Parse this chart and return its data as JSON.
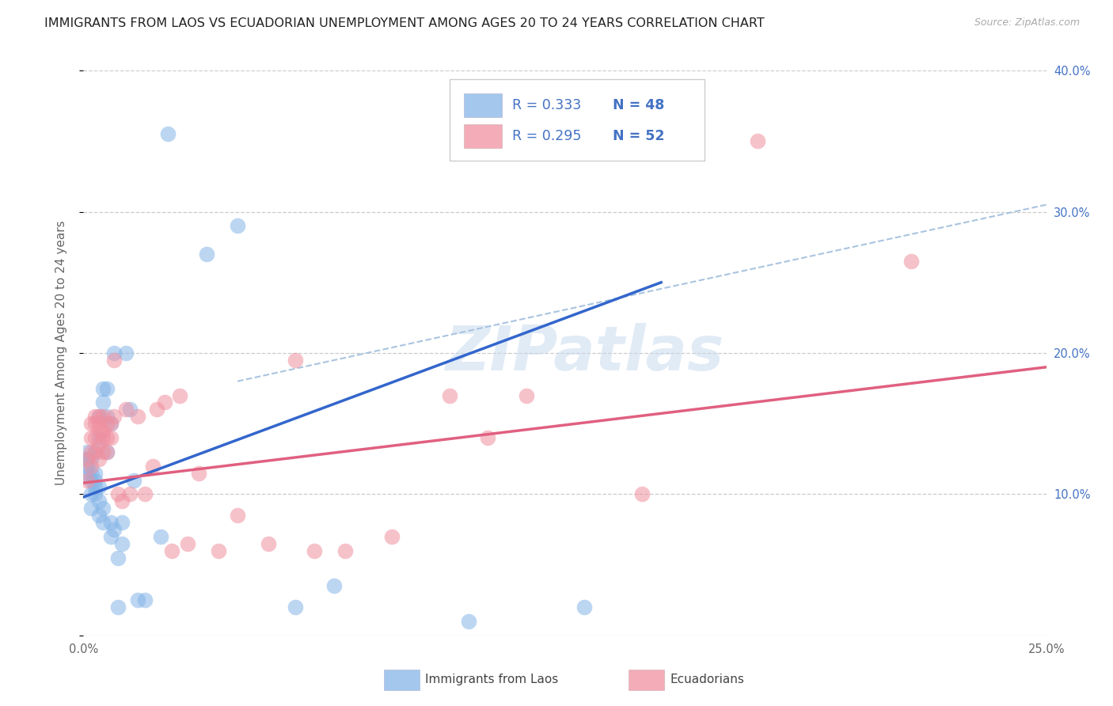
{
  "title": "IMMIGRANTS FROM LAOS VS ECUADORIAN UNEMPLOYMENT AMONG AGES 20 TO 24 YEARS CORRELATION CHART",
  "source": "Source: ZipAtlas.com",
  "ylabel": "Unemployment Among Ages 20 to 24 years",
  "xlim": [
    0.0,
    0.25
  ],
  "ylim": [
    0.0,
    0.4
  ],
  "xtick_vals": [
    0.0,
    0.05,
    0.1,
    0.15,
    0.2,
    0.25
  ],
  "xtick_labels": [
    "0.0%",
    "",
    "",
    "",
    "",
    "25.0%"
  ],
  "ytick_vals": [
    0.0,
    0.1,
    0.2,
    0.3,
    0.4
  ],
  "ytick_labels_right": [
    "",
    "10.0%",
    "20.0%",
    "30.0%",
    "40.0%"
  ],
  "legend_text_color": "#4472c4",
  "legend_blue_r": "R = 0.333",
  "legend_blue_n": "N = 48",
  "legend_pink_r": "R = 0.295",
  "legend_pink_n": "N = 52",
  "legend_label_blue": "Immigrants from Laos",
  "legend_label_pink": "Ecuadorians",
  "blue_scatter_color": "#85b5e8",
  "pink_scatter_color": "#f090a0",
  "trend_blue_color": "#3366cc",
  "trend_pink_color": "#e06080",
  "dashed_color": "#aac4e0",
  "blue_x": [
    0.001,
    0.001,
    0.001,
    0.001,
    0.002,
    0.002,
    0.002,
    0.002,
    0.002,
    0.003,
    0.003,
    0.003,
    0.003,
    0.003,
    0.004,
    0.004,
    0.004,
    0.004,
    0.004,
    0.005,
    0.005,
    0.005,
    0.005,
    0.006,
    0.006,
    0.006,
    0.007,
    0.007,
    0.007,
    0.008,
    0.008,
    0.009,
    0.009,
    0.01,
    0.01,
    0.011,
    0.012,
    0.013,
    0.014,
    0.016,
    0.02,
    0.022,
    0.032,
    0.04,
    0.055,
    0.065,
    0.1,
    0.13
  ],
  "blue_y": [
    0.115,
    0.12,
    0.125,
    0.13,
    0.09,
    0.1,
    0.11,
    0.115,
    0.125,
    0.1,
    0.105,
    0.11,
    0.115,
    0.13,
    0.085,
    0.095,
    0.105,
    0.14,
    0.155,
    0.08,
    0.09,
    0.165,
    0.175,
    0.13,
    0.155,
    0.175,
    0.07,
    0.08,
    0.15,
    0.075,
    0.2,
    0.02,
    0.055,
    0.065,
    0.08,
    0.2,
    0.16,
    0.11,
    0.025,
    0.025,
    0.07,
    0.355,
    0.27,
    0.29,
    0.02,
    0.035,
    0.01,
    0.02
  ],
  "pink_x": [
    0.001,
    0.001,
    0.002,
    0.002,
    0.002,
    0.002,
    0.003,
    0.003,
    0.003,
    0.003,
    0.004,
    0.004,
    0.004,
    0.004,
    0.004,
    0.005,
    0.005,
    0.005,
    0.005,
    0.006,
    0.006,
    0.006,
    0.007,
    0.007,
    0.008,
    0.008,
    0.009,
    0.01,
    0.011,
    0.012,
    0.014,
    0.016,
    0.018,
    0.019,
    0.021,
    0.023,
    0.025,
    0.027,
    0.03,
    0.035,
    0.04,
    0.048,
    0.055,
    0.06,
    0.068,
    0.08,
    0.095,
    0.105,
    0.115,
    0.145,
    0.175,
    0.215
  ],
  "pink_y": [
    0.11,
    0.125,
    0.12,
    0.13,
    0.14,
    0.15,
    0.13,
    0.14,
    0.15,
    0.155,
    0.125,
    0.135,
    0.145,
    0.15,
    0.155,
    0.13,
    0.14,
    0.145,
    0.155,
    0.13,
    0.14,
    0.15,
    0.14,
    0.15,
    0.155,
    0.195,
    0.1,
    0.095,
    0.16,
    0.1,
    0.155,
    0.1,
    0.12,
    0.16,
    0.165,
    0.06,
    0.17,
    0.065,
    0.115,
    0.06,
    0.085,
    0.065,
    0.195,
    0.06,
    0.06,
    0.07,
    0.17,
    0.14,
    0.17,
    0.1,
    0.35,
    0.265
  ],
  "watermark": "ZIPatlas",
  "title_fontsize": 11.5,
  "ylabel_fontsize": 11,
  "tick_fontsize": 10.5,
  "right_tick_color": "#4472c4"
}
